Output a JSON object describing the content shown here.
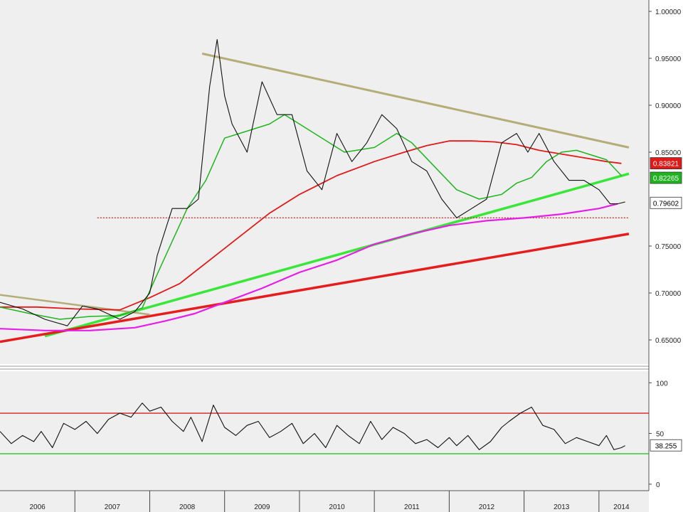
{
  "colors": {
    "background": "#efefef",
    "price": "#111111",
    "ma_short": "#1fb51f",
    "ma_mid": "#e01919",
    "ma_long": "#e61ee6",
    "trend_green": "#39e639",
    "trend_red": "#e51d1d",
    "trend_tan": "#b5ad78",
    "support_dotted": "#d42020",
    "rsi_line": "#111111",
    "rsi_upper": "#d42020",
    "rsi_lower": "#29c229"
  },
  "chart_data": [
    {
      "type": "line",
      "title": "",
      "xlabel": "",
      "ylabel": "",
      "x_labels": [
        "2006",
        "2007",
        "2008",
        "2009",
        "2010",
        "2011",
        "2012",
        "2013",
        "2014"
      ],
      "y_ticks": [
        "1.00000",
        "0.95000",
        "0.90000",
        "0.85000",
        "0.75000",
        "0.70000",
        "0.65000"
      ],
      "ylim": [
        0.62,
        1.0
      ],
      "xlim": [
        2006.0,
        2014.6
      ],
      "grid": false,
      "last_value_tags": [
        {
          "label": "0.83821",
          "value": 0.8382,
          "color": "#e01919",
          "text_color": "#ffffff"
        },
        {
          "label": "0.82265",
          "value": 0.8227,
          "color": "#1fb51f",
          "text_color": "#ffffff"
        },
        {
          "label": "0.79602",
          "value": 0.796,
          "color": "#ffffff",
          "text_color": "#000000"
        }
      ],
      "series": [
        {
          "key": "price",
          "x": [
            2006.0,
            2006.3,
            2006.6,
            2006.9,
            2007.1,
            2007.3,
            2007.6,
            2007.8,
            2008.0,
            2008.1,
            2008.3,
            2008.5,
            2008.65,
            2008.8,
            2008.9,
            2009.0,
            2009.1,
            2009.3,
            2009.5,
            2009.7,
            2009.9,
            2010.1,
            2010.3,
            2010.5,
            2010.7,
            2010.9,
            2011.1,
            2011.3,
            2011.5,
            2011.7,
            2011.9,
            2012.1,
            2012.3,
            2012.5,
            2012.7,
            2012.9,
            2013.05,
            2013.2,
            2013.4,
            2013.6,
            2013.8,
            2014.0,
            2014.15,
            2014.25,
            2014.35
          ],
          "values": [
            0.69,
            0.683,
            0.672,
            0.665,
            0.686,
            0.683,
            0.672,
            0.68,
            0.7,
            0.74,
            0.79,
            0.79,
            0.8,
            0.92,
            0.97,
            0.91,
            0.88,
            0.85,
            0.925,
            0.89,
            0.89,
            0.83,
            0.81,
            0.87,
            0.84,
            0.86,
            0.89,
            0.875,
            0.84,
            0.83,
            0.8,
            0.78,
            0.79,
            0.8,
            0.86,
            0.87,
            0.85,
            0.87,
            0.84,
            0.82,
            0.82,
            0.81,
            0.795,
            0.795,
            0.797
          ]
        },
        {
          "key": "ma_short",
          "x": [
            2006.0,
            2006.4,
            2006.8,
            2007.2,
            2007.6,
            2007.9,
            2008.1,
            2008.3,
            2008.5,
            2008.75,
            2009.0,
            2009.2,
            2009.4,
            2009.6,
            2009.8,
            2010.0,
            2010.3,
            2010.6,
            2011.0,
            2011.3,
            2011.5,
            2011.8,
            2012.1,
            2012.4,
            2012.7,
            2012.9,
            2013.1,
            2013.3,
            2013.5,
            2013.7,
            2013.9,
            2014.1,
            2014.3
          ],
          "values": [
            0.685,
            0.678,
            0.672,
            0.675,
            0.676,
            0.684,
            0.72,
            0.755,
            0.79,
            0.82,
            0.865,
            0.87,
            0.875,
            0.88,
            0.89,
            0.88,
            0.865,
            0.85,
            0.855,
            0.87,
            0.86,
            0.835,
            0.81,
            0.8,
            0.805,
            0.817,
            0.823,
            0.84,
            0.85,
            0.852,
            0.847,
            0.842,
            0.825
          ]
        },
        {
          "key": "ma_mid",
          "x": [
            2006.0,
            2006.5,
            2007.0,
            2007.6,
            2008.0,
            2008.4,
            2008.8,
            2009.2,
            2009.6,
            2010.0,
            2010.5,
            2011.0,
            2011.4,
            2011.7,
            2012.0,
            2012.3,
            2012.6,
            2012.9,
            2013.2,
            2013.5,
            2013.8,
            2014.1,
            2014.3
          ],
          "values": [
            0.685,
            0.685,
            0.683,
            0.682,
            0.695,
            0.71,
            0.735,
            0.76,
            0.785,
            0.805,
            0.825,
            0.84,
            0.85,
            0.857,
            0.862,
            0.862,
            0.861,
            0.858,
            0.852,
            0.848,
            0.844,
            0.84,
            0.838
          ]
        },
        {
          "key": "ma_long",
          "x": [
            2006.0,
            2006.6,
            2007.2,
            2007.8,
            2008.2,
            2008.6,
            2009.0,
            2009.5,
            2010.0,
            2010.5,
            2011.0,
            2011.5,
            2012.0,
            2012.5,
            2013.0,
            2013.5,
            2014.0,
            2014.25
          ],
          "values": [
            0.662,
            0.66,
            0.66,
            0.663,
            0.67,
            0.678,
            0.69,
            0.705,
            0.722,
            0.735,
            0.752,
            0.763,
            0.772,
            0.777,
            0.78,
            0.784,
            0.79,
            0.795
          ]
        }
      ],
      "trendlines": [
        {
          "key": "trend_green",
          "x": [
            2006.6,
            2014.4
          ],
          "values": [
            0.654,
            0.827
          ]
        },
        {
          "key": "trend_red",
          "x": [
            2006.0,
            2014.4
          ],
          "values": [
            0.648,
            0.763
          ]
        },
        {
          "key": "trend_tan_long",
          "x": [
            2008.7,
            2014.4
          ],
          "values": [
            0.955,
            0.855
          ]
        },
        {
          "key": "trend_tan_short",
          "x": [
            2006.0,
            2008.0
          ],
          "values": [
            0.698,
            0.677
          ]
        }
      ],
      "hlines": [
        {
          "key": "support_dotted",
          "value": 0.78,
          "x": [
            2007.3,
            2014.4
          ]
        }
      ]
    },
    {
      "type": "line",
      "title": "",
      "y_ticks": [
        "100",
        "50",
        "0"
      ],
      "ylim": [
        -5,
        110
      ],
      "xlim": [
        2006.0,
        2014.6
      ],
      "last_value_tags": [
        {
          "label": "38.255",
          "value": 38.3,
          "color": "#ffffff",
          "text_color": "#000000"
        }
      ],
      "hlines": [
        {
          "key": "rsi_upper",
          "value": 70
        },
        {
          "key": "rsi_lower",
          "value": 30
        }
      ],
      "series": [
        {
          "key": "rsi_line",
          "x": [
            2006.0,
            2006.15,
            2006.3,
            2006.45,
            2006.55,
            2006.7,
            2006.85,
            2007.0,
            2007.15,
            2007.3,
            2007.45,
            2007.6,
            2007.75,
            2007.9,
            2008.0,
            2008.15,
            2008.3,
            2008.45,
            2008.55,
            2008.7,
            2008.85,
            2009.0,
            2009.15,
            2009.3,
            2009.45,
            2009.6,
            2009.75,
            2009.9,
            2010.05,
            2010.2,
            2010.35,
            2010.5,
            2010.65,
            2010.8,
            2010.95,
            2011.1,
            2011.25,
            2011.4,
            2011.55,
            2011.7,
            2011.85,
            2012.0,
            2012.1,
            2012.25,
            2012.4,
            2012.55,
            2012.7,
            2012.8,
            2012.95,
            2013.1,
            2013.25,
            2013.4,
            2013.55,
            2013.7,
            2013.85,
            2014.0,
            2014.1,
            2014.2,
            2014.3,
            2014.35
          ],
          "values": [
            52,
            40,
            48,
            42,
            52,
            36,
            60,
            54,
            62,
            50,
            64,
            70,
            66,
            80,
            72,
            76,
            62,
            52,
            66,
            42,
            78,
            56,
            48,
            58,
            62,
            46,
            52,
            60,
            40,
            50,
            36,
            58,
            48,
            40,
            62,
            44,
            56,
            50,
            40,
            44,
            36,
            46,
            38,
            48,
            34,
            42,
            56,
            62,
            70,
            76,
            58,
            54,
            40,
            46,
            42,
            38,
            48,
            34,
            36,
            38
          ]
        }
      ]
    }
  ]
}
